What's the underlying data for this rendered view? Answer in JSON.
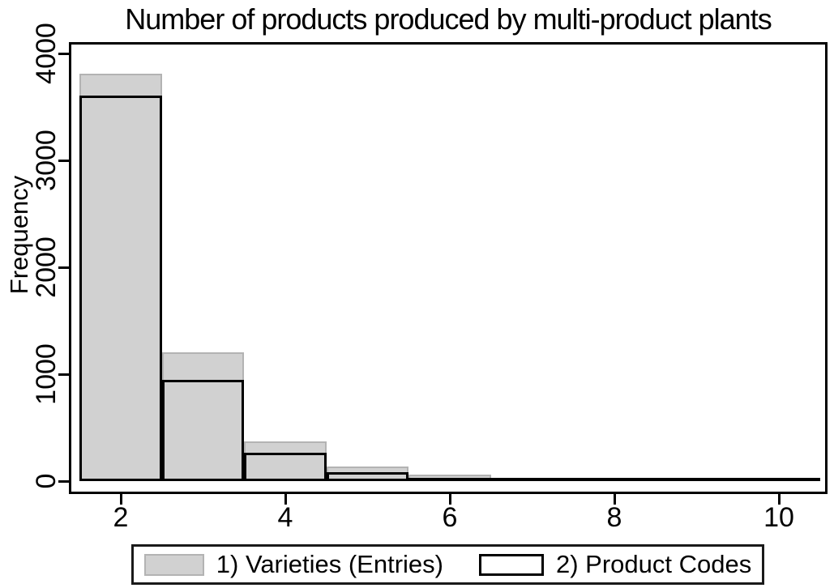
{
  "title": "Number of products produced by multi-product plants",
  "y_axis": {
    "label": "Frequency",
    "ticks": [
      "0",
      "1000",
      "2000",
      "3000",
      "4000"
    ]
  },
  "x_axis": {
    "ticks": [
      "2",
      "4",
      "6",
      "8",
      "10"
    ]
  },
  "legend": {
    "items": [
      {
        "label": "1) Varieties (Entries)",
        "swatch": "gray-fill"
      },
      {
        "label": "2) Product Codes",
        "swatch": "black-outline"
      }
    ]
  },
  "colors": {
    "bar_fill": "#d1d1d1",
    "bar_fill_border": "#b3b3b3",
    "bar_outline": "#000000",
    "frame": "#000000"
  },
  "chart_data": {
    "type": "bar",
    "subtype": "overlaid-histogram",
    "title": "Number of products produced by multi-product plants",
    "categories": [
      2,
      3,
      4,
      5,
      6,
      7,
      8,
      9,
      10
    ],
    "bin_width": 1,
    "series": [
      {
        "name": "1) Varieties (Entries)",
        "style": "gray-fill",
        "values": [
          3800,
          1200,
          365,
          130,
          55,
          25,
          12,
          8,
          5
        ]
      },
      {
        "name": "2) Product Codes",
        "style": "black-outline",
        "values": [
          3580,
          925,
          245,
          60,
          22,
          12,
          7,
          4,
          2
        ]
      }
    ],
    "xlabel": "",
    "ylabel": "Frequency",
    "xlim": [
      1.4,
      10.6
    ],
    "ylim": [
      0,
      4080
    ],
    "x_ticks": [
      2,
      4,
      6,
      8,
      10
    ],
    "y_ticks": [
      0,
      1000,
      2000,
      3000,
      4000
    ],
    "grid": false,
    "legend_position": "bottom"
  }
}
